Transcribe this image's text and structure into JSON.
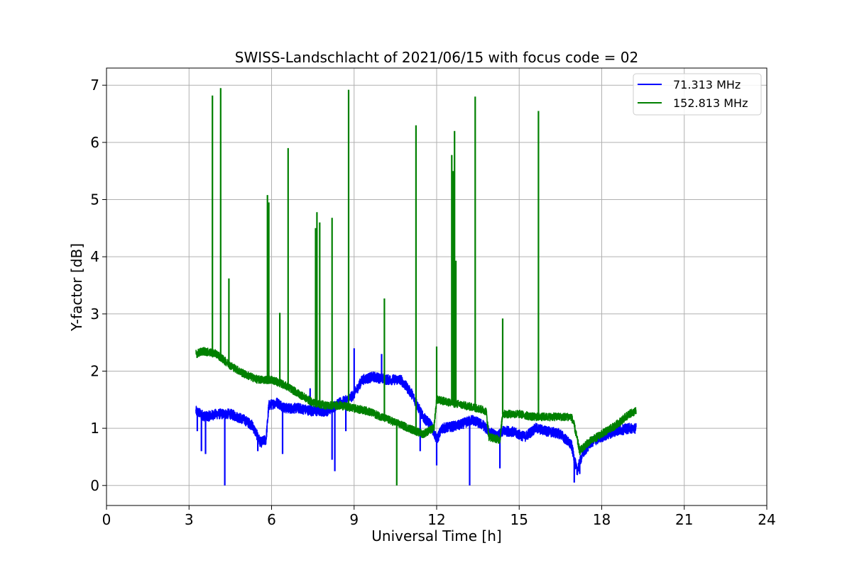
{
  "chart_data": {
    "type": "line",
    "title": "SWISS-Landschlacht of 2021/06/15 with focus code = 02",
    "xlabel": "Universal Time [h]",
    "ylabel": "Y-factor [dB]",
    "xlim": [
      0,
      24
    ],
    "ylim": [
      -0.35,
      7.3
    ],
    "xticks": [
      0,
      3,
      6,
      9,
      12,
      15,
      18,
      21,
      24
    ],
    "xtick_labels": [
      "0",
      "3",
      "6",
      "9",
      "12",
      "15",
      "18",
      "21",
      "24"
    ],
    "yticks": [
      0,
      1,
      2,
      3,
      4,
      5,
      6,
      7
    ],
    "ytick_labels": [
      "0",
      "1",
      "2",
      "3",
      "4",
      "5",
      "6",
      "7"
    ],
    "grid": true,
    "legend_position": "top-right",
    "series": [
      {
        "name": "71.313 MHz",
        "color": "#0000ff",
        "baseline": [
          [
            3.25,
            1.3
          ],
          [
            3.6,
            1.2
          ],
          [
            4.0,
            1.25
          ],
          [
            4.5,
            1.25
          ],
          [
            5.0,
            1.15
          ],
          [
            5.3,
            1.05
          ],
          [
            5.6,
            0.75
          ],
          [
            5.8,
            0.8
          ],
          [
            5.9,
            1.4
          ],
          [
            6.2,
            1.45
          ],
          [
            6.5,
            1.35
          ],
          [
            7.0,
            1.35
          ],
          [
            7.5,
            1.3
          ],
          [
            8.0,
            1.3
          ],
          [
            8.5,
            1.45
          ],
          [
            8.8,
            1.5
          ],
          [
            9.0,
            1.6
          ],
          [
            9.3,
            1.85
          ],
          [
            9.7,
            1.9
          ],
          [
            10.2,
            1.85
          ],
          [
            10.7,
            1.85
          ],
          [
            11.1,
            1.6
          ],
          [
            11.3,
            1.4
          ],
          [
            11.5,
            1.2
          ],
          [
            11.8,
            1.05
          ],
          [
            12.0,
            0.8
          ],
          [
            12.2,
            1.0
          ],
          [
            12.8,
            1.05
          ],
          [
            13.3,
            1.15
          ],
          [
            13.7,
            1.05
          ],
          [
            13.9,
            0.95
          ],
          [
            14.2,
            0.85
          ],
          [
            14.4,
            0.95
          ],
          [
            14.7,
            0.95
          ],
          [
            15.2,
            0.85
          ],
          [
            15.6,
            1.0
          ],
          [
            16.0,
            0.95
          ],
          [
            16.5,
            0.9
          ],
          [
            16.9,
            0.7
          ],
          [
            17.1,
            0.25
          ],
          [
            17.3,
            0.55
          ],
          [
            17.6,
            0.75
          ],
          [
            18.0,
            0.85
          ],
          [
            18.5,
            0.95
          ],
          [
            19.0,
            1.0
          ],
          [
            19.25,
            1.0
          ]
        ],
        "spikes": [
          [
            3.3,
            0.95
          ],
          [
            3.45,
            0.6
          ],
          [
            3.6,
            0.55
          ],
          [
            4.3,
            0.0
          ],
          [
            5.5,
            0.6
          ],
          [
            6.4,
            0.55
          ],
          [
            7.4,
            1.7
          ],
          [
            8.2,
            0.45
          ],
          [
            8.3,
            0.25
          ],
          [
            8.7,
            0.95
          ],
          [
            9.0,
            2.4
          ],
          [
            10.0,
            2.3
          ],
          [
            11.4,
            0.6
          ],
          [
            12.0,
            0.35
          ],
          [
            13.2,
            0.0
          ],
          [
            14.3,
            0.3
          ],
          [
            17.0,
            0.05
          ],
          [
            17.2,
            0.2
          ]
        ]
      },
      {
        "name": "152.813 MHz",
        "color": "#008000",
        "baseline": [
          [
            3.25,
            2.3
          ],
          [
            3.5,
            2.35
          ],
          [
            4.0,
            2.3
          ],
          [
            4.5,
            2.1
          ],
          [
            5.0,
            1.95
          ],
          [
            5.5,
            1.85
          ],
          [
            6.0,
            1.85
          ],
          [
            6.5,
            1.75
          ],
          [
            7.0,
            1.6
          ],
          [
            7.5,
            1.45
          ],
          [
            8.0,
            1.4
          ],
          [
            8.5,
            1.4
          ],
          [
            9.0,
            1.35
          ],
          [
            9.5,
            1.3
          ],
          [
            10.0,
            1.2
          ],
          [
            10.5,
            1.1
          ],
          [
            11.0,
            1.0
          ],
          [
            11.5,
            0.9
          ],
          [
            11.9,
            1.0
          ],
          [
            12.0,
            1.5
          ],
          [
            12.5,
            1.45
          ],
          [
            13.0,
            1.4
          ],
          [
            13.5,
            1.35
          ],
          [
            13.8,
            1.3
          ],
          [
            13.9,
            0.85
          ],
          [
            14.3,
            0.8
          ],
          [
            14.4,
            1.25
          ],
          [
            15.0,
            1.25
          ],
          [
            15.5,
            1.2
          ],
          [
            16.0,
            1.2
          ],
          [
            16.5,
            1.2
          ],
          [
            16.9,
            1.2
          ],
          [
            17.0,
            1.05
          ],
          [
            17.2,
            0.6
          ],
          [
            17.5,
            0.75
          ],
          [
            18.0,
            0.9
          ],
          [
            18.5,
            1.05
          ],
          [
            19.0,
            1.25
          ],
          [
            19.25,
            1.3
          ]
        ],
        "spikes": [
          [
            3.85,
            6.82
          ],
          [
            4.15,
            6.95
          ],
          [
            4.45,
            3.62
          ],
          [
            5.85,
            5.08
          ],
          [
            5.9,
            4.95
          ],
          [
            6.3,
            3.02
          ],
          [
            6.6,
            5.9
          ],
          [
            7.6,
            4.5
          ],
          [
            7.65,
            4.78
          ],
          [
            7.75,
            4.6
          ],
          [
            8.2,
            4.68
          ],
          [
            8.8,
            6.92
          ],
          [
            10.1,
            3.27
          ],
          [
            10.55,
            0.0
          ],
          [
            11.25,
            6.3
          ],
          [
            12.0,
            2.43
          ],
          [
            12.55,
            5.78
          ],
          [
            12.6,
            5.5
          ],
          [
            12.65,
            6.2
          ],
          [
            12.7,
            3.93
          ],
          [
            13.4,
            6.8
          ],
          [
            14.4,
            2.92
          ],
          [
            15.7,
            6.55
          ]
        ]
      }
    ]
  }
}
